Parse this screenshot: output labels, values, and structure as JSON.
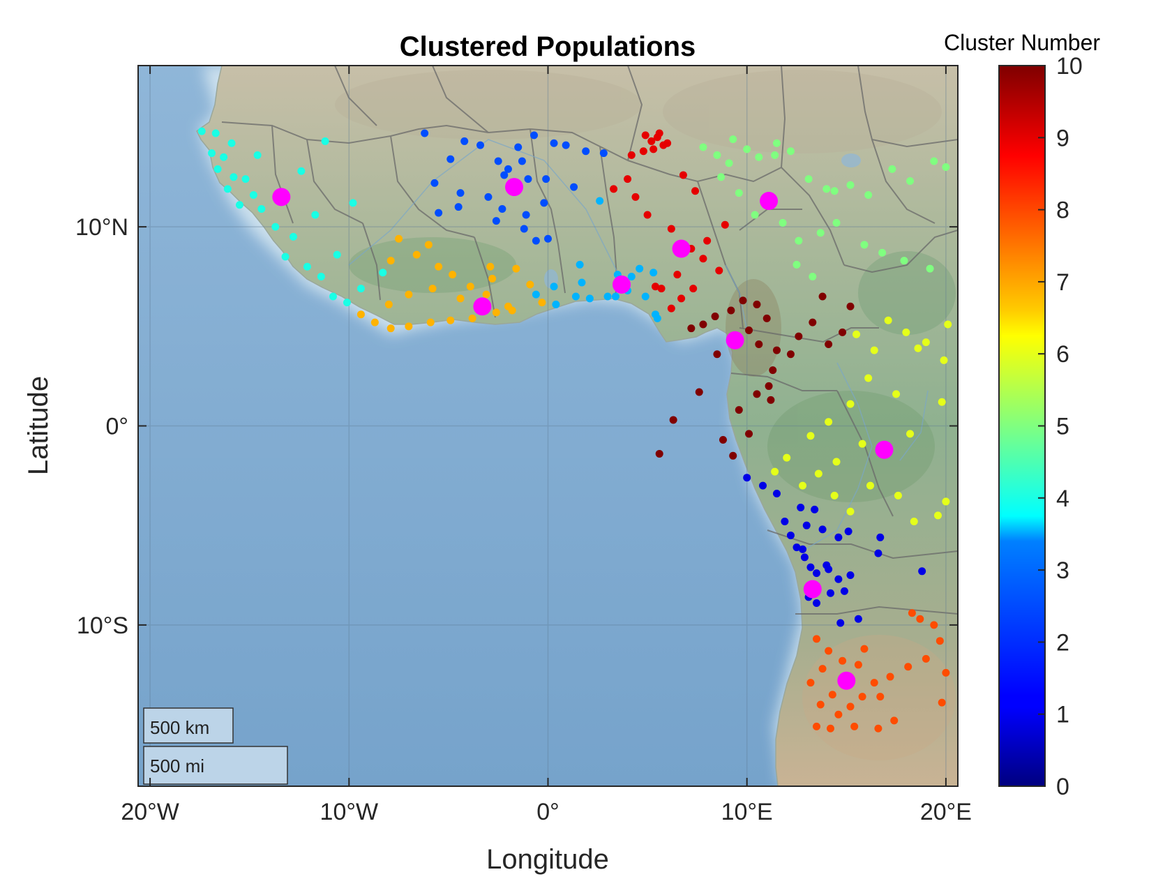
{
  "chart_data": {
    "type": "scatter",
    "title": "Clustered Populations",
    "xlabel": "Longitude",
    "ylabel": "Latitude",
    "xlim": [
      -20.6,
      20.6
    ],
    "ylim": [
      -18.1,
      18.1
    ],
    "x_ticks": [
      {
        "value": -20,
        "label": "20°W"
      },
      {
        "value": -10,
        "label": "10°W"
      },
      {
        "value": 0,
        "label": "0°"
      },
      {
        "value": 10,
        "label": "10°E"
      },
      {
        "value": 20,
        "label": "20°E"
      }
    ],
    "y_ticks": [
      {
        "value": 10,
        "label": "10°N"
      },
      {
        "value": 0,
        "label": "0°"
      },
      {
        "value": -10,
        "label": "10°S"
      }
    ],
    "basemap": "shaded relief map of West and Central Africa with country borders and ocean",
    "grid": true,
    "colorbar": {
      "title": "Cluster Number",
      "range": [
        0,
        10
      ],
      "colormap": "jet",
      "ticks": [
        "0",
        "1",
        "2",
        "3",
        "4",
        "5",
        "6",
        "7",
        "8",
        "9",
        "10"
      ],
      "location": "right"
    },
    "scale_bar": {
      "km_label": "500 km",
      "mi_label": "500 mi",
      "location": "bottom-left"
    },
    "centroid_color": "#ff00ff",
    "centroids": [
      {
        "cluster": 1,
        "lon": 13.3,
        "lat": -8.2
      },
      {
        "cluster": 2,
        "lon": -1.7,
        "lat": 12.0
      },
      {
        "cluster": 3,
        "lon": 3.7,
        "lat": 7.1
      },
      {
        "cluster": 4,
        "lon": -13.4,
        "lat": 11.5
      },
      {
        "cluster": 5,
        "lon": 11.1,
        "lat": 11.3
      },
      {
        "cluster": 6,
        "lon": 16.9,
        "lat": -1.2
      },
      {
        "cluster": 7,
        "lon": -3.3,
        "lat": 6.0
      },
      {
        "cluster": 8,
        "lon": 15.0,
        "lat": -12.8
      },
      {
        "cluster": 9,
        "lon": 6.7,
        "lat": 8.9
      },
      {
        "cluster": 10,
        "lon": 9.4,
        "lat": 4.3
      }
    ],
    "series": [
      {
        "cluster": 1,
        "points": [
          [
            11.9,
            -4.8
          ],
          [
            12.2,
            -5.5
          ],
          [
            12.5,
            -6.1
          ],
          [
            12.9,
            -6.6
          ],
          [
            13.2,
            -7.1
          ],
          [
            13.5,
            -7.4
          ],
          [
            13.1,
            -8.6
          ],
          [
            13.5,
            -8.9
          ],
          [
            14.1,
            -7.2
          ],
          [
            14.6,
            -7.7
          ],
          [
            14.2,
            -8.4
          ],
          [
            14.9,
            -8.3
          ],
          [
            14.0,
            -7.0
          ],
          [
            13.8,
            -5.2
          ],
          [
            14.6,
            -5.6
          ],
          [
            15.1,
            -5.3
          ],
          [
            13.4,
            -4.2
          ],
          [
            12.7,
            -4.1
          ],
          [
            11.5,
            -3.4
          ],
          [
            10.0,
            -2.6
          ],
          [
            10.8,
            -3.0
          ],
          [
            15.6,
            -9.7
          ],
          [
            14.7,
            -9.9
          ],
          [
            16.6,
            -6.4
          ],
          [
            16.7,
            -5.6
          ],
          [
            18.8,
            -7.3
          ],
          [
            12.8,
            -6.2
          ],
          [
            13.0,
            -5.0
          ],
          [
            15.2,
            -7.5
          ]
        ]
      },
      {
        "cluster": 2,
        "points": [
          [
            -6.2,
            14.7
          ],
          [
            -4.2,
            14.3
          ],
          [
            -3.4,
            14.1
          ],
          [
            -4.9,
            13.4
          ],
          [
            -2.5,
            13.3
          ],
          [
            -1.5,
            14.0
          ],
          [
            -0.7,
            14.6
          ],
          [
            0.3,
            14.2
          ],
          [
            0.9,
            14.1
          ],
          [
            1.9,
            13.8
          ],
          [
            2.8,
            13.7
          ],
          [
            -2.0,
            12.9
          ],
          [
            -1.0,
            12.4
          ],
          [
            -0.1,
            12.4
          ],
          [
            1.3,
            12.0
          ],
          [
            -5.7,
            12.2
          ],
          [
            -4.4,
            11.7
          ],
          [
            -3.0,
            11.5
          ],
          [
            -2.3,
            10.9
          ],
          [
            -1.1,
            10.6
          ],
          [
            0.0,
            9.4
          ],
          [
            -0.6,
            9.3
          ],
          [
            -2.6,
            10.3
          ],
          [
            -4.5,
            11.0
          ],
          [
            -5.5,
            10.7
          ],
          [
            -1.2,
            9.9
          ],
          [
            -0.2,
            11.2
          ],
          [
            -1.7,
            11.8
          ],
          [
            -2.2,
            12.6
          ],
          [
            -1.3,
            13.3
          ]
        ]
      },
      {
        "cluster": 3,
        "points": [
          [
            3.5,
            7.6
          ],
          [
            4.2,
            7.5
          ],
          [
            4.6,
            7.9
          ],
          [
            5.3,
            7.7
          ],
          [
            4.9,
            6.5
          ],
          [
            5.4,
            5.6
          ],
          [
            3.0,
            6.5
          ],
          [
            2.1,
            6.4
          ],
          [
            1.4,
            6.5
          ],
          [
            0.4,
            6.1
          ],
          [
            1.7,
            7.2
          ],
          [
            0.3,
            7.0
          ],
          [
            -0.6,
            6.6
          ],
          [
            1.6,
            8.1
          ],
          [
            2.6,
            11.3
          ],
          [
            3.4,
            6.5
          ],
          [
            5.5,
            5.4
          ],
          [
            4.0,
            6.8
          ]
        ]
      },
      {
        "cluster": 4,
        "points": [
          [
            -17.4,
            14.8
          ],
          [
            -16.7,
            14.7
          ],
          [
            -16.9,
            13.7
          ],
          [
            -16.3,
            13.5
          ],
          [
            -15.9,
            14.2
          ],
          [
            -16.6,
            12.9
          ],
          [
            -15.2,
            12.4
          ],
          [
            -14.8,
            11.6
          ],
          [
            -16.1,
            11.9
          ],
          [
            -15.5,
            11.1
          ],
          [
            -14.4,
            10.9
          ],
          [
            -13.7,
            10.0
          ],
          [
            -12.8,
            9.5
          ],
          [
            -13.2,
            8.5
          ],
          [
            -12.1,
            8.0
          ],
          [
            -11.4,
            7.5
          ],
          [
            -10.8,
            6.5
          ],
          [
            -10.1,
            6.2
          ],
          [
            -9.4,
            6.9
          ],
          [
            -8.3,
            7.7
          ],
          [
            -11.2,
            14.3
          ],
          [
            -12.4,
            12.8
          ],
          [
            -11.7,
            10.6
          ],
          [
            -9.8,
            11.2
          ],
          [
            -10.6,
            8.6
          ],
          [
            -14.6,
            13.6
          ],
          [
            -15.8,
            12.5
          ]
        ]
      },
      {
        "cluster": 5,
        "points": [
          [
            7.8,
            14.0
          ],
          [
            8.5,
            13.6
          ],
          [
            9.1,
            13.2
          ],
          [
            10.0,
            13.9
          ],
          [
            10.6,
            13.5
          ],
          [
            11.4,
            13.6
          ],
          [
            12.2,
            13.8
          ],
          [
            13.1,
            12.4
          ],
          [
            14.0,
            11.9
          ],
          [
            15.2,
            12.1
          ],
          [
            16.1,
            11.6
          ],
          [
            17.3,
            12.9
          ],
          [
            18.2,
            12.3
          ],
          [
            19.4,
            13.3
          ],
          [
            20.0,
            13.0
          ],
          [
            8.7,
            12.5
          ],
          [
            9.6,
            11.7
          ],
          [
            10.4,
            10.6
          ],
          [
            11.8,
            10.2
          ],
          [
            12.6,
            9.3
          ],
          [
            13.7,
            9.7
          ],
          [
            14.5,
            10.2
          ],
          [
            15.9,
            9.1
          ],
          [
            16.8,
            8.7
          ],
          [
            17.9,
            8.3
          ],
          [
            19.2,
            7.9
          ],
          [
            14.4,
            11.8
          ],
          [
            12.5,
            8.1
          ],
          [
            13.3,
            7.5
          ],
          [
            9.3,
            14.4
          ],
          [
            11.5,
            14.2
          ]
        ]
      },
      {
        "cluster": 6,
        "points": [
          [
            15.5,
            4.6
          ],
          [
            16.4,
            3.8
          ],
          [
            17.1,
            5.3
          ],
          [
            18.0,
            4.7
          ],
          [
            19.0,
            4.2
          ],
          [
            20.1,
            5.1
          ],
          [
            19.9,
            3.3
          ],
          [
            18.6,
            3.9
          ],
          [
            16.1,
            2.4
          ],
          [
            17.5,
            1.6
          ],
          [
            15.2,
            1.1
          ],
          [
            14.1,
            0.2
          ],
          [
            13.2,
            -0.5
          ],
          [
            12.0,
            -1.6
          ],
          [
            11.4,
            -2.3
          ],
          [
            13.6,
            -2.4
          ],
          [
            14.4,
            -3.5
          ],
          [
            15.2,
            -4.3
          ],
          [
            16.2,
            -3.0
          ],
          [
            17.6,
            -3.5
          ],
          [
            18.4,
            -4.8
          ],
          [
            19.6,
            -4.5
          ],
          [
            20.0,
            -3.8
          ],
          [
            19.8,
            1.2
          ],
          [
            18.2,
            -0.4
          ],
          [
            12.8,
            -3.0
          ],
          [
            14.5,
            -1.8
          ],
          [
            15.8,
            -0.9
          ]
        ]
      },
      {
        "cluster": 7,
        "points": [
          [
            -7.9,
            8.3
          ],
          [
            -6.6,
            8.6
          ],
          [
            -5.5,
            8.0
          ],
          [
            -4.8,
            7.6
          ],
          [
            -3.9,
            7.0
          ],
          [
            -2.8,
            7.4
          ],
          [
            -1.6,
            7.9
          ],
          [
            -0.9,
            7.1
          ],
          [
            -0.3,
            6.2
          ],
          [
            -1.8,
            5.8
          ],
          [
            -2.6,
            5.7
          ],
          [
            -3.8,
            5.4
          ],
          [
            -4.9,
            5.3
          ],
          [
            -5.9,
            5.2
          ],
          [
            -7.0,
            5.0
          ],
          [
            -7.9,
            4.9
          ],
          [
            -8.7,
            5.2
          ],
          [
            -9.4,
            5.6
          ],
          [
            -8.0,
            6.1
          ],
          [
            -7.0,
            6.6
          ],
          [
            -5.8,
            6.9
          ],
          [
            -4.4,
            6.4
          ],
          [
            -3.1,
            6.6
          ],
          [
            -2.0,
            6.0
          ],
          [
            -2.9,
            8.0
          ],
          [
            -6.0,
            9.1
          ],
          [
            -7.5,
            9.4
          ]
        ]
      },
      {
        "cluster": 8,
        "points": [
          [
            13.5,
            -10.7
          ],
          [
            14.1,
            -11.3
          ],
          [
            14.8,
            -11.8
          ],
          [
            13.8,
            -12.2
          ],
          [
            13.2,
            -12.9
          ],
          [
            14.3,
            -13.5
          ],
          [
            13.7,
            -14.0
          ],
          [
            14.6,
            -14.5
          ],
          [
            15.2,
            -14.1
          ],
          [
            15.8,
            -13.6
          ],
          [
            16.4,
            -12.9
          ],
          [
            17.2,
            -12.6
          ],
          [
            18.1,
            -12.1
          ],
          [
            19.0,
            -11.7
          ],
          [
            19.7,
            -10.8
          ],
          [
            20.0,
            -12.4
          ],
          [
            19.4,
            -10.0
          ],
          [
            18.3,
            -9.4
          ],
          [
            17.4,
            -14.8
          ],
          [
            16.6,
            -15.2
          ],
          [
            15.4,
            -15.1
          ],
          [
            14.2,
            -15.2
          ],
          [
            13.5,
            -15.1
          ],
          [
            15.9,
            -11.2
          ],
          [
            16.7,
            -13.6
          ],
          [
            18.7,
            -9.7
          ],
          [
            19.8,
            -13.9
          ],
          [
            14.9,
            -12.6
          ],
          [
            15.6,
            -12.0
          ]
        ]
      },
      {
        "cluster": 9,
        "points": [
          [
            4.9,
            14.6
          ],
          [
            5.2,
            14.3
          ],
          [
            5.5,
            14.5
          ],
          [
            5.8,
            14.1
          ],
          [
            5.3,
            13.9
          ],
          [
            4.8,
            13.8
          ],
          [
            5.6,
            14.7
          ],
          [
            6.0,
            14.2
          ],
          [
            4.0,
            12.4
          ],
          [
            3.3,
            11.9
          ],
          [
            4.4,
            11.5
          ],
          [
            5.0,
            10.6
          ],
          [
            6.2,
            9.9
          ],
          [
            7.2,
            8.9
          ],
          [
            7.8,
            8.4
          ],
          [
            8.6,
            7.8
          ],
          [
            6.5,
            7.6
          ],
          [
            5.7,
            6.9
          ],
          [
            6.7,
            6.4
          ],
          [
            7.3,
            6.9
          ],
          [
            8.0,
            9.3
          ],
          [
            8.9,
            10.1
          ],
          [
            7.4,
            11.8
          ],
          [
            6.8,
            12.6
          ],
          [
            4.2,
            13.6
          ],
          [
            5.4,
            7.0
          ],
          [
            6.2,
            5.9
          ]
        ]
      },
      {
        "cluster": 10,
        "points": [
          [
            9.8,
            6.3
          ],
          [
            10.5,
            6.1
          ],
          [
            9.2,
            5.8
          ],
          [
            8.4,
            5.5
          ],
          [
            7.8,
            5.1
          ],
          [
            7.2,
            4.9
          ],
          [
            10.1,
            4.8
          ],
          [
            11.0,
            5.4
          ],
          [
            10.6,
            4.1
          ],
          [
            11.5,
            3.8
          ],
          [
            12.6,
            4.5
          ],
          [
            13.3,
            5.2
          ],
          [
            14.1,
            4.1
          ],
          [
            14.8,
            4.7
          ],
          [
            15.2,
            6.0
          ],
          [
            13.8,
            6.5
          ],
          [
            11.3,
            2.8
          ],
          [
            11.1,
            2.0
          ],
          [
            10.5,
            1.6
          ],
          [
            11.2,
            1.3
          ],
          [
            9.6,
            0.8
          ],
          [
            8.8,
            -0.7
          ],
          [
            9.3,
            -1.5
          ],
          [
            10.1,
            -0.4
          ],
          [
            6.3,
            0.3
          ],
          [
            5.6,
            -1.4
          ],
          [
            7.6,
            1.7
          ],
          [
            12.2,
            3.6
          ],
          [
            8.5,
            3.6
          ]
        ]
      }
    ]
  }
}
